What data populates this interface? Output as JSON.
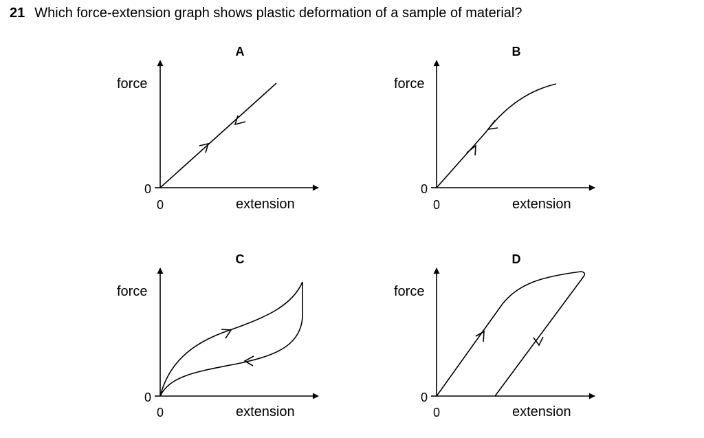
{
  "question": {
    "number": "21",
    "text": "Which force-extension graph shows plastic deformation of a sample of material?"
  },
  "graphs": [
    {
      "letter": "A",
      "y_axis_label": "force",
      "x_axis_label": "extension",
      "y_origin_label": "0",
      "x_origin_label": "0"
    },
    {
      "letter": "B",
      "y_axis_label": "force",
      "x_axis_label": "extension",
      "y_origin_label": "0",
      "x_origin_label": "0"
    },
    {
      "letter": "C",
      "y_axis_label": "force",
      "x_axis_label": "extension",
      "y_origin_label": "0",
      "x_origin_label": "0"
    },
    {
      "letter": "D",
      "y_axis_label": "force",
      "x_axis_label": "extension",
      "y_origin_label": "0",
      "x_origin_label": "0"
    }
  ]
}
